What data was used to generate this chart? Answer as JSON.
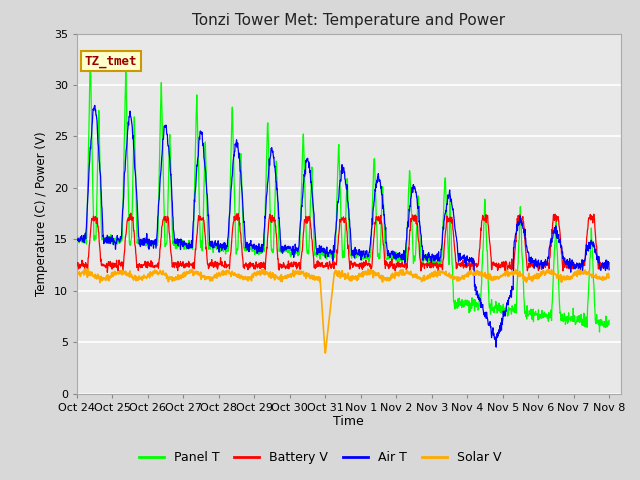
{
  "title": "Tonzi Tower Met: Temperature and Power",
  "xlabel": "Time",
  "ylabel": "Temperature (C) / Power (V)",
  "ylim": [
    0,
    35
  ],
  "yticks": [
    0,
    5,
    10,
    15,
    20,
    25,
    30,
    35
  ],
  "xtick_labels": [
    "Oct 24",
    "Oct 25",
    "Oct 26",
    "Oct 27",
    "Oct 28",
    "Oct 29",
    "Oct 30",
    "Oct 31",
    "Nov 1",
    "Nov 2",
    "Nov 3",
    "Nov 4",
    "Nov 5",
    "Nov 6",
    "Nov 7",
    "Nov 8"
  ],
  "annotation_text": "TZ_tmet",
  "annotation_bg": "#ffffcc",
  "annotation_border": "#cc9900",
  "annotation_text_color": "#990000",
  "colors": {
    "panel_t": "#00ff00",
    "battery_v": "#ff0000",
    "air_t": "#0000ff",
    "solar_v": "#ffaa00"
  },
  "legend_labels": [
    "Panel T",
    "Battery V",
    "Air T",
    "Solar V"
  ],
  "fig_bg": "#d8d8d8",
  "plot_bg": "#e8e8e8",
  "grid_color": "#ffffff"
}
